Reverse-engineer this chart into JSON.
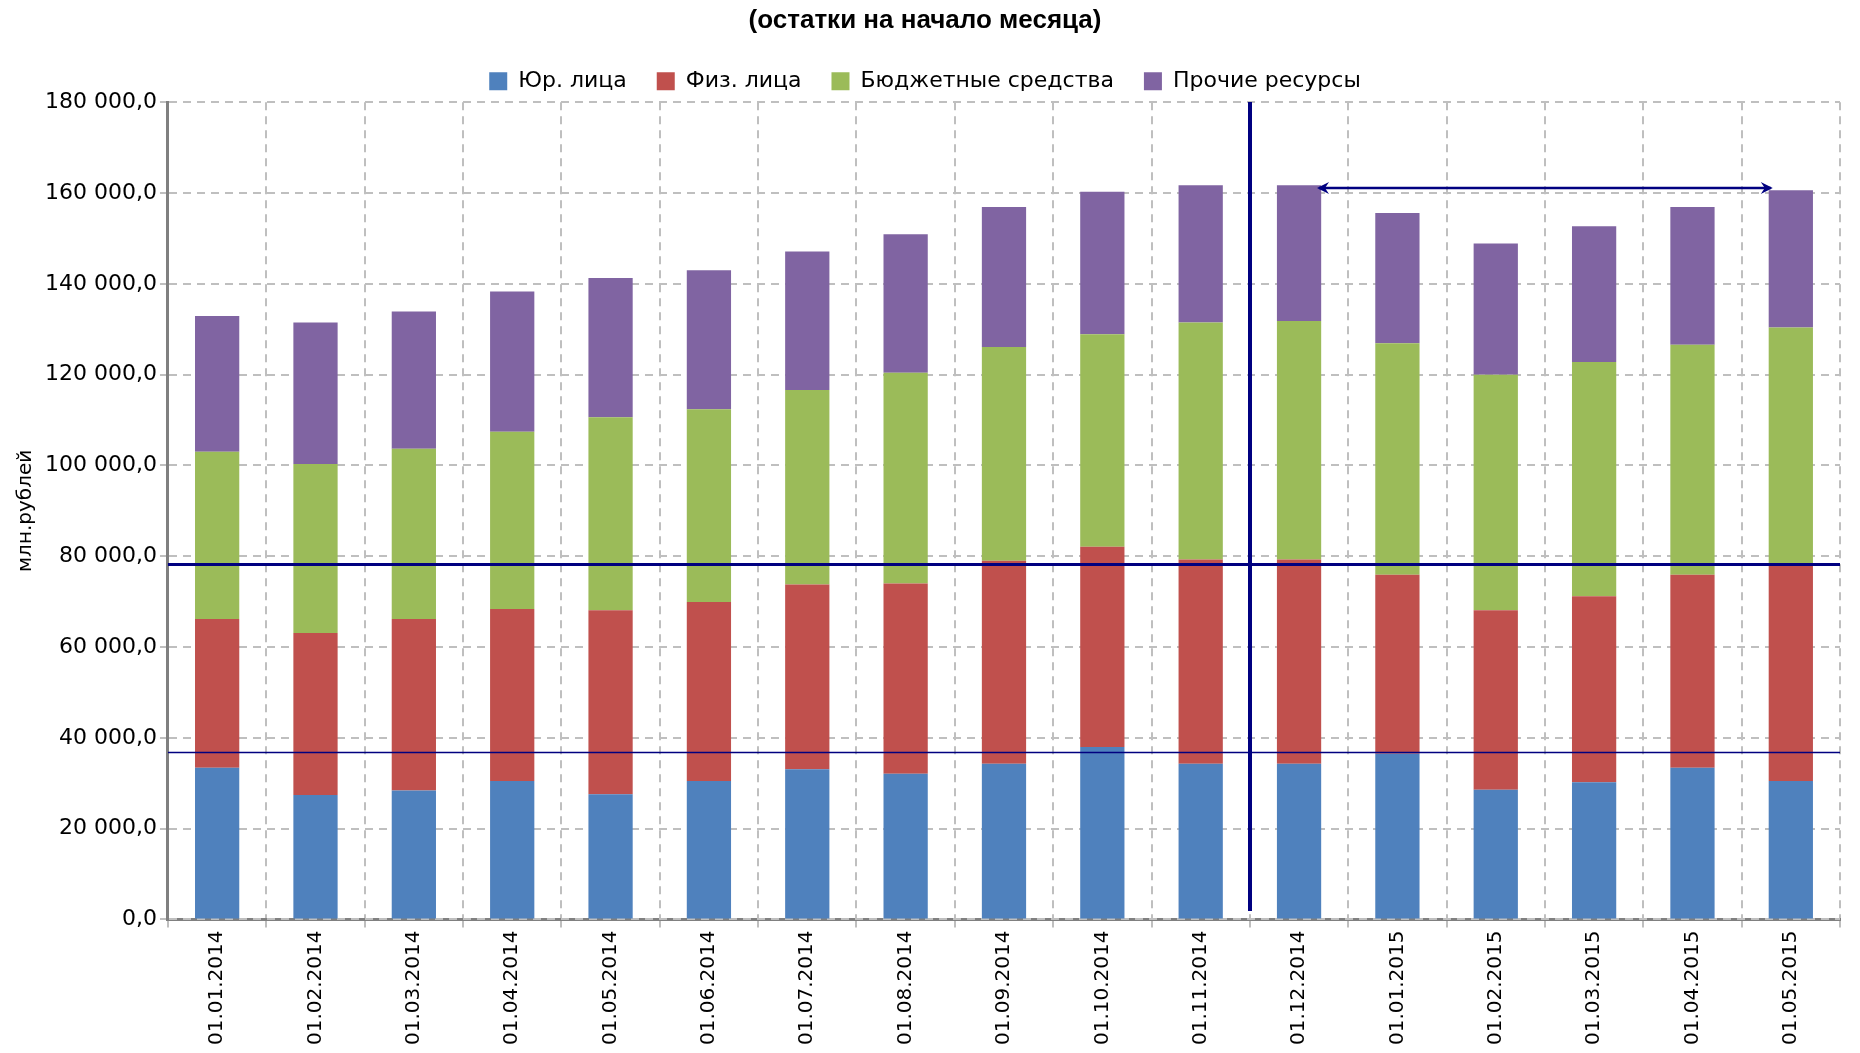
{
  "chart_data": {
    "type": "bar",
    "title": "(остатки на начало месяца)",
    "ylabel": "млн.рублей",
    "stacked": true,
    "grid": true,
    "legend": "top",
    "categories": [
      "01.01.2014",
      "01.02.2014",
      "01.03.2014",
      "01.04.2014",
      "01.05.2014",
      "01.06.2014",
      "01.07.2014",
      "01.08.2014",
      "01.09.2014",
      "01.10.2014",
      "01.11.2014",
      "01.12.2014",
      "01.01.2015",
      "01.02.2015",
      "01.03.2015",
      "01.04.2015",
      "01.05.2015"
    ],
    "series": [
      {
        "name": "Юр. лица",
        "color": "#4f81bd",
        "values": [
          33400,
          27400,
          28400,
          30500,
          27600,
          30500,
          33100,
          32100,
          34300,
          38000,
          34300,
          34300,
          36500,
          28600,
          30200,
          33400,
          30500
        ]
      },
      {
        "name": "Физ. лица",
        "color": "#c0504d",
        "values": [
          32800,
          35700,
          37800,
          37900,
          40500,
          39400,
          40700,
          41900,
          44700,
          44100,
          45000,
          45000,
          39400,
          39500,
          41000,
          42500,
          47900
        ]
      },
      {
        "name": "Бюджетные средства",
        "color": "#9bbb59",
        "values": [
          36800,
          37200,
          37500,
          39000,
          42500,
          42500,
          42800,
          46400,
          47100,
          46800,
          52200,
          52500,
          51000,
          51900,
          51600,
          50700,
          52000
        ]
      },
      {
        "name": "Прочие ресурсы",
        "color": "#8064a2",
        "values": [
          29900,
          31200,
          30200,
          30900,
          30700,
          30600,
          30500,
          30500,
          30800,
          31400,
          30200,
          29900,
          28700,
          28900,
          29900,
          30300,
          30200
        ]
      }
    ],
    "ylim": [
      0,
      180000
    ],
    "yticks": [
      {
        "value": 0,
        "label": "0,0"
      },
      {
        "value": 20000,
        "label": "20 000,0"
      },
      {
        "value": 40000,
        "label": "40 000,0"
      },
      {
        "value": 60000,
        "label": "60 000,0"
      },
      {
        "value": 80000,
        "label": "80 000,0"
      },
      {
        "value": 100000,
        "label": "100 000,0"
      },
      {
        "value": 120000,
        "label": "120 000,0"
      },
      {
        "value": 140000,
        "label": "140 000,0"
      },
      {
        "value": 160000,
        "label": "160 000,0"
      },
      {
        "value": 180000,
        "label": "180 000,0"
      }
    ],
    "ref_lines": [
      {
        "axis": "y",
        "value": 78200,
        "color": "#000080"
      },
      {
        "axis": "y",
        "value": 36800,
        "color": "#000080"
      }
    ]
  }
}
